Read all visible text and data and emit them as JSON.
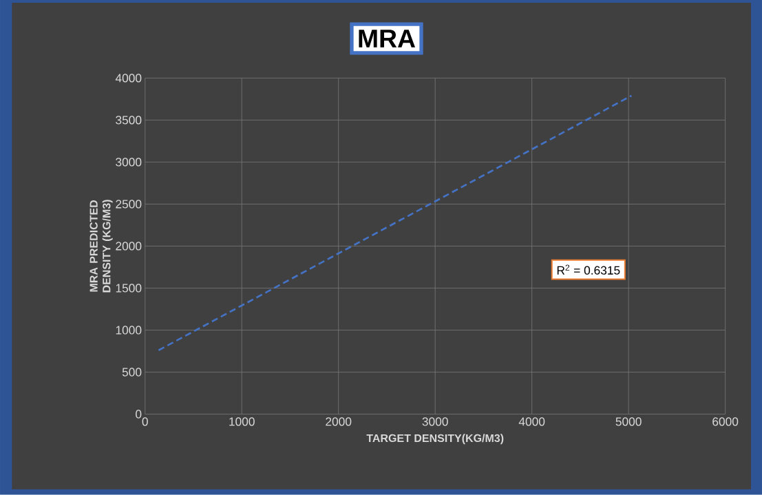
{
  "chart_data": {
    "type": "line",
    "title": "MRA",
    "xlabel": "TARGET DENSITY(KG/M3)",
    "ylabel": "MRA PREDICTED DENSITY (KG/M3)",
    "x": [
      140,
      5030
    ],
    "series": [
      {
        "color": "#4472c4",
        "values": [
          760,
          3790
        ]
      }
    ],
    "line_style": "dashed",
    "grid": true,
    "xlim": [
      0,
      6000
    ],
    "xticks": [
      0,
      1000,
      2000,
      3000,
      4000,
      5000,
      6000
    ],
    "ylim": [
      0,
      4000
    ],
    "yticks": [
      0,
      500,
      1000,
      1500,
      2000,
      2500,
      3000,
      3500,
      4000
    ],
    "annotations": [
      "R$^{2}$ = 0.6315"
    ]
  }
}
